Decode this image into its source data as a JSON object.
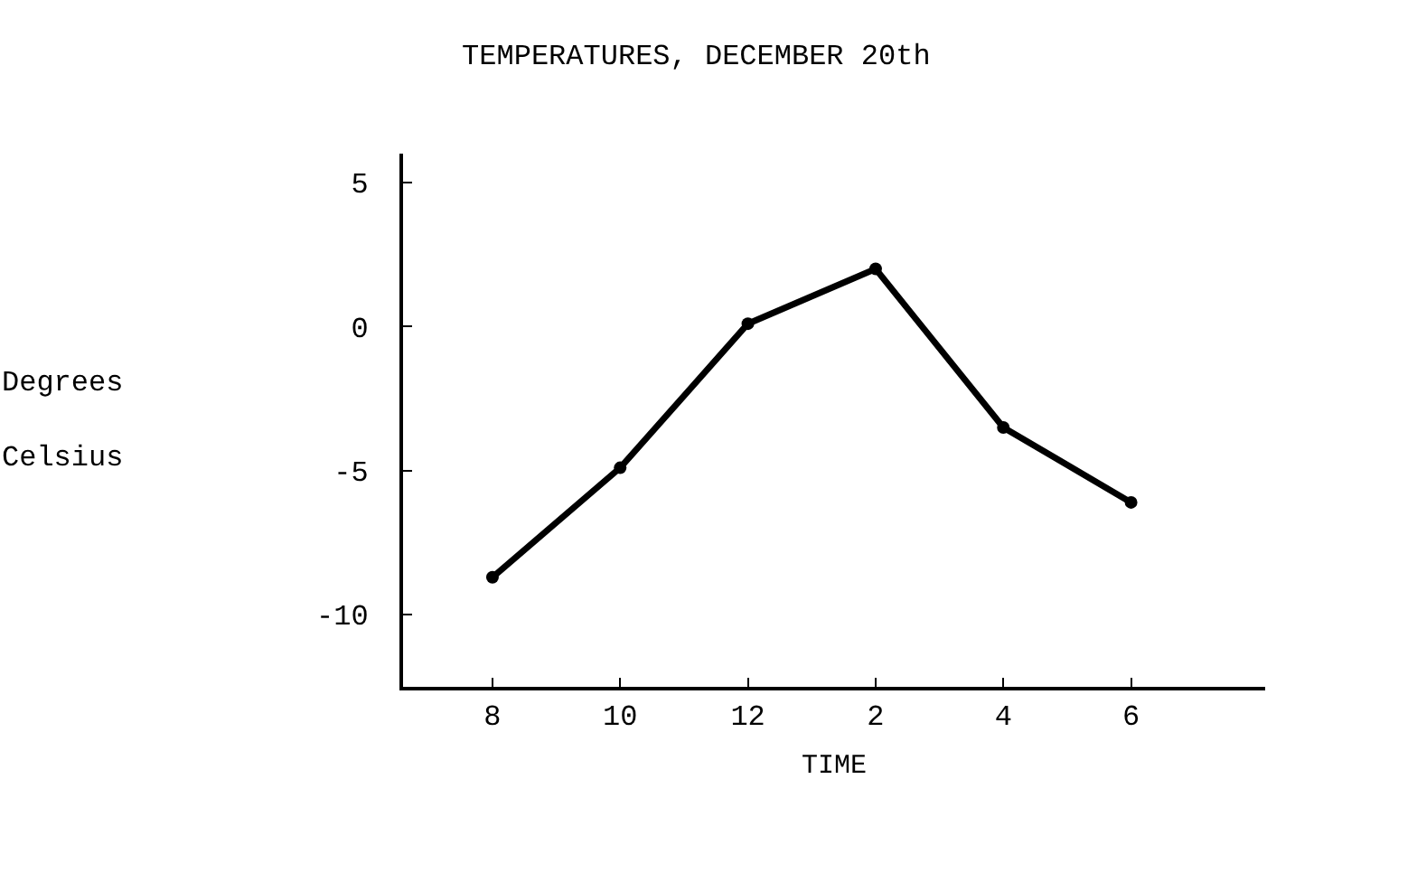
{
  "chart_data": {
    "type": "line",
    "title": "TEMPERATURES, DECEMBER 20th",
    "xlabel": "TIME",
    "ylabel": "Degrees Celsius",
    "categories": [
      "8",
      "10",
      "12",
      "2",
      "4",
      "6"
    ],
    "series": [
      {
        "color": "#000000",
        "values": [
          -8.7,
          -4.9,
          0.1,
          2.0,
          -3.5,
          -6.1
        ]
      }
    ],
    "ylim": [
      -12.5,
      6
    ],
    "yticks": [
      5,
      0,
      -5,
      -10
    ],
    "grid": false,
    "marker": "circle",
    "line_style": "solid"
  }
}
